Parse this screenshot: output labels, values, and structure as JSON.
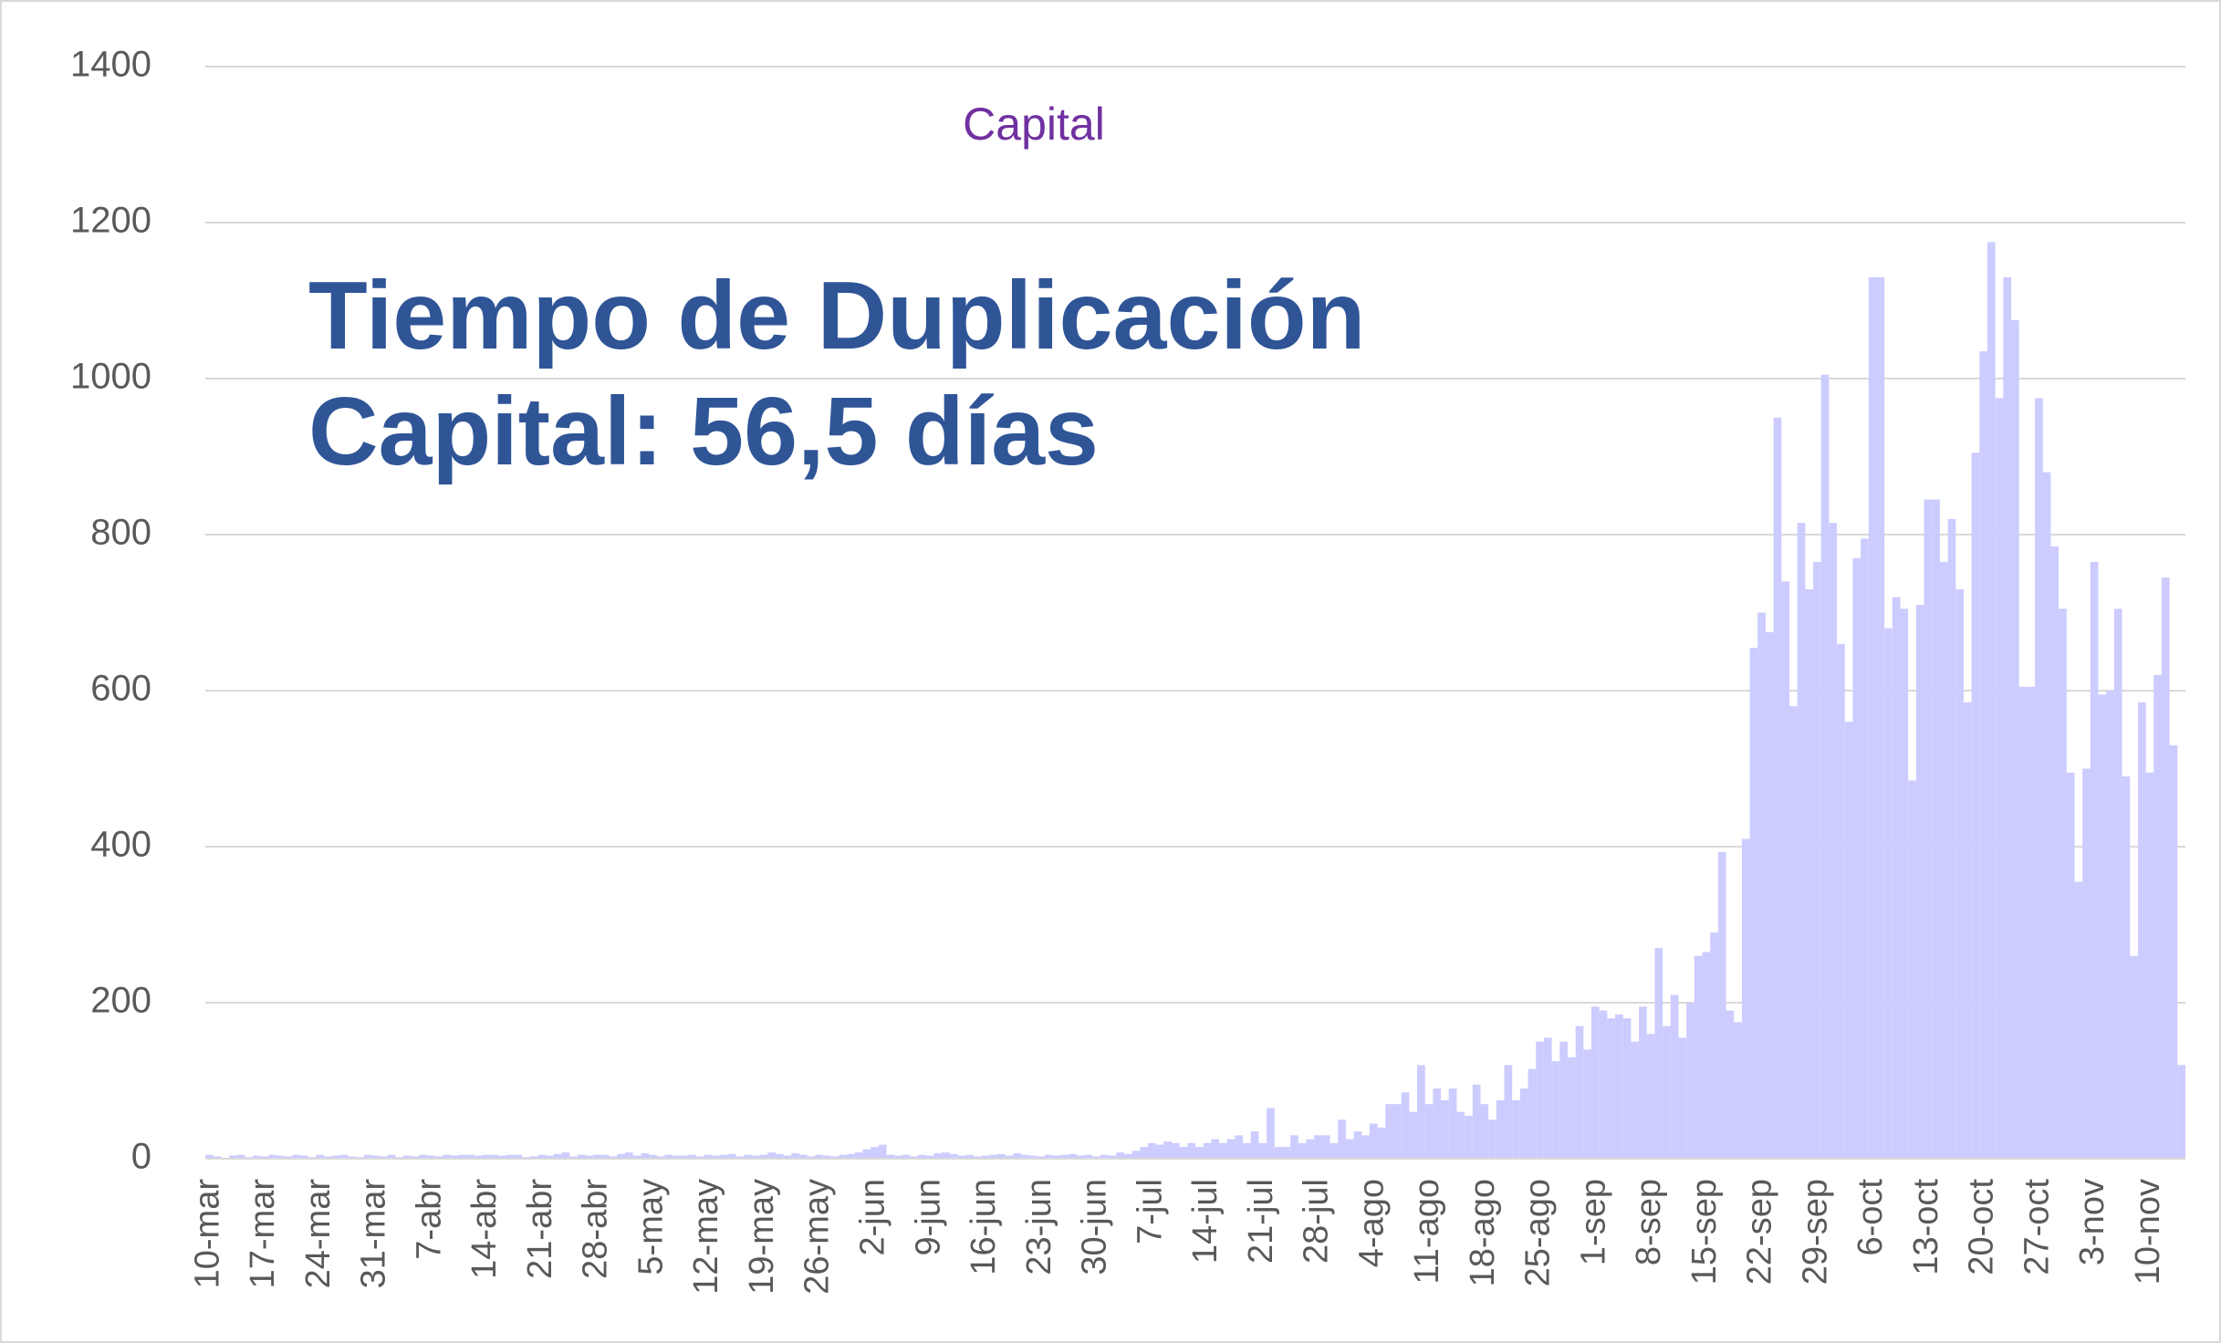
{
  "chart_data": {
    "type": "bar",
    "title": "Capital",
    "annotations": [
      "Tiempo de Duplicación",
      "Capital: 56,5 días"
    ],
    "categories": [
      "10-mar",
      null,
      null,
      null,
      null,
      null,
      null,
      "17-mar",
      null,
      null,
      null,
      null,
      null,
      null,
      "24-mar",
      null,
      null,
      null,
      null,
      null,
      null,
      "31-mar",
      null,
      null,
      null,
      null,
      null,
      null,
      "7-abr",
      null,
      null,
      null,
      null,
      null,
      null,
      "14-abr",
      null,
      null,
      null,
      null,
      null,
      null,
      "21-abr",
      null,
      null,
      null,
      null,
      null,
      null,
      "28-abr",
      null,
      null,
      null,
      null,
      null,
      null,
      "5-may",
      null,
      null,
      null,
      null,
      null,
      null,
      "12-may",
      null,
      null,
      null,
      null,
      null,
      null,
      "19-may",
      null,
      null,
      null,
      null,
      null,
      null,
      "26-may",
      null,
      null,
      null,
      null,
      null,
      null,
      "2-jun",
      null,
      null,
      null,
      null,
      null,
      null,
      "9-jun",
      null,
      null,
      null,
      null,
      null,
      null,
      "16-jun",
      null,
      null,
      null,
      null,
      null,
      null,
      "23-jun",
      null,
      null,
      null,
      null,
      null,
      null,
      "30-jun",
      null,
      null,
      null,
      null,
      null,
      null,
      "7-jul",
      null,
      null,
      null,
      null,
      null,
      null,
      "14-jul",
      null,
      null,
      null,
      null,
      null,
      null,
      "21-jul",
      null,
      null,
      null,
      null,
      null,
      null,
      "28-jul",
      null,
      null,
      null,
      null,
      null,
      null,
      "4-ago",
      null,
      null,
      null,
      null,
      null,
      null,
      "11-ago",
      null,
      null,
      null,
      null,
      null,
      null,
      "18-ago",
      null,
      null,
      null,
      null,
      null,
      null,
      "25-ago",
      null,
      null,
      null,
      null,
      null,
      null,
      "1-sep",
      null,
      null,
      null,
      null,
      null,
      null,
      "8-sep",
      null,
      null,
      null,
      null,
      null,
      null,
      "15-sep",
      null,
      null,
      null,
      null,
      null,
      null,
      "22-sep",
      null,
      null,
      null,
      null,
      null,
      null,
      "29-sep",
      null,
      null,
      null,
      null,
      null,
      null,
      "6-oct",
      null,
      null,
      null,
      null,
      null,
      null,
      "13-oct",
      null,
      null,
      null,
      null,
      null,
      null,
      "20-oct",
      null,
      null,
      null,
      null,
      null,
      null,
      "27-oct",
      null,
      null,
      null,
      null,
      null,
      null,
      "3-nov",
      null,
      null,
      null,
      null,
      null,
      null,
      "10-nov",
      null,
      null,
      null,
      null
    ],
    "values": [
      5,
      3,
      0,
      4,
      5,
      2,
      4,
      3,
      5,
      4,
      3,
      5,
      4,
      2,
      5,
      3,
      4,
      5,
      3,
      2,
      5,
      4,
      3,
      5,
      2,
      4,
      3,
      5,
      4,
      3,
      5,
      4,
      5,
      5,
      4,
      5,
      5,
      4,
      5,
      5,
      2,
      3,
      5,
      4,
      6,
      8,
      3,
      5,
      4,
      5,
      5,
      3,
      6,
      8,
      4,
      7,
      5,
      3,
      5,
      4,
      4,
      5,
      3,
      5,
      4,
      5,
      6,
      3,
      5,
      4,
      5,
      8,
      6,
      4,
      7,
      5,
      3,
      5,
      4,
      3,
      5,
      6,
      8,
      12,
      15,
      18,
      5,
      4,
      5,
      3,
      5,
      4,
      7,
      8,
      6,
      4,
      5,
      3,
      4,
      5,
      6,
      4,
      7,
      5,
      4,
      3,
      5,
      4,
      5,
      6,
      4,
      5,
      3,
      5,
      4,
      8,
      6,
      10,
      15,
      20,
      18,
      22,
      20,
      15,
      20,
      15,
      20,
      25,
      20,
      25,
      30,
      20,
      35,
      20,
      65,
      15,
      15,
      30,
      20,
      25,
      30,
      30,
      20,
      50,
      25,
      35,
      30,
      45,
      40,
      70,
      70,
      85,
      60,
      120,
      70,
      90,
      75,
      90,
      60,
      55,
      95,
      70,
      50,
      75,
      120,
      75,
      90,
      115,
      150,
      155,
      125,
      150,
      130,
      170,
      140,
      195,
      190,
      180,
      185,
      180,
      150,
      195,
      160,
      270,
      170,
      210,
      155,
      200,
      260,
      265,
      290,
      393,
      190,
      175,
      410,
      655,
      700,
      675,
      950,
      740,
      580,
      815,
      730,
      765,
      1005,
      815,
      660,
      560,
      770,
      795,
      1130,
      1130,
      680,
      720,
      705,
      485,
      710,
      845,
      845,
      765,
      820,
      730,
      585,
      905,
      1035,
      1175,
      975,
      1130,
      1075,
      605,
      605,
      975,
      880,
      785,
      705,
      495,
      355,
      500,
      765,
      595,
      600,
      705,
      490,
      260,
      585,
      495,
      620,
      745,
      530,
      120
    ],
    "color": "#ccccff",
    "ylim": [
      0,
      1400
    ],
    "yticks": [
      0,
      200,
      400,
      600,
      800,
      1000,
      1200,
      1400
    ],
    "grid": true
  }
}
